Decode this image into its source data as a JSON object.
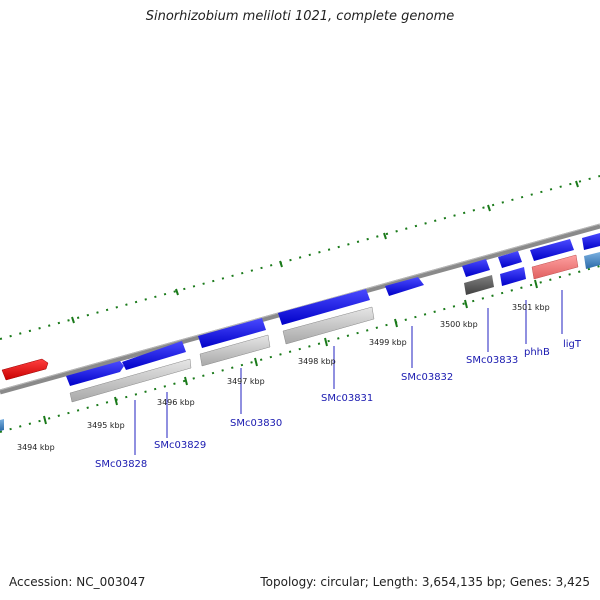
{
  "title": "Sinorhizobium meliloti 1021, complete genome",
  "footer": {
    "accession": "Accession: NC_003047",
    "summary": "Topology: circular; Length: 3,654,135 bp; Genes: 3,425"
  },
  "kbp_labels": [
    "3494 kbp",
    "3495 kbp",
    "3496 kbp",
    "3497 kbp",
    "3498 kbp",
    "3499 kbp",
    "3500 kbp",
    "3501 kbp"
  ],
  "gene_labels": [
    "SMc03828",
    "SMc03829",
    "SMc03830",
    "SMc03831",
    "SMc03832",
    "SMc03833",
    "phhB",
    "ligT"
  ],
  "colors": {
    "backbone": "#808080",
    "tick": "#1a7a1a",
    "gene_forward": "#1010e0",
    "gene_cds": "#c8c8c8",
    "gene_reverse": "#e81010",
    "gene_light_reverse": "#f08080",
    "gene_dark": "#606060",
    "gene_steel": "#4a8cc8",
    "label": "#1a1ab0"
  }
}
